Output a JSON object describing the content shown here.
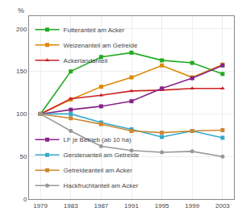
{
  "chart_data": {
    "type": "line",
    "x": [
      1979,
      1983,
      1987,
      1991,
      1995,
      1999,
      2003
    ],
    "series": [
      {
        "name": "Futteranteil am Acker",
        "color": "#22aa22",
        "marker": "square",
        "values": [
          100,
          150,
          167,
          172,
          163,
          160,
          147
        ]
      },
      {
        "name": "Weizenanteil am Getreide",
        "color": "#dd8800",
        "marker": "square",
        "values": [
          100,
          117,
          132,
          143,
          157,
          143,
          158
        ]
      },
      {
        "name": "Ackerlandanteil",
        "color": "#cc2222",
        "marker": "triangle",
        "values": [
          100,
          118,
          122,
          127,
          128,
          130,
          130
        ]
      },
      {
        "name": "LF je Betrieb (ab 10 ha)",
        "color": "#882288",
        "marker": "square",
        "legend": "lower left",
        "values": [
          100,
          105,
          109,
          115,
          130,
          142,
          157
        ]
      },
      {
        "name": "Gerstenanteil am Getreide",
        "color": "#33aacc",
        "marker": "square",
        "legend": "lower left",
        "values": [
          100,
          100,
          90,
          82,
          73,
          80,
          72
        ]
      },
      {
        "name": "Getreideanteil am Acker",
        "color": "#cc8833",
        "marker": "square",
        "legend": "lower left",
        "values": [
          100,
          95,
          88,
          80,
          78,
          80,
          81
        ]
      },
      {
        "name": "Hackfruchtanteil am Acker",
        "color": "#999999",
        "marker": "circle",
        "legend": "lower left",
        "values": [
          100,
          80,
          62,
          57,
          55,
          56,
          50
        ]
      }
    ],
    "y_label": "%",
    "xlim": [
      1977.5,
      2004.5
    ],
    "xticks": [
      1979,
      1983,
      1987,
      1991,
      1995,
      1999,
      2003
    ],
    "ylim": [
      0,
      215
    ],
    "yticks": [
      0,
      50,
      100,
      150,
      200
    ],
    "grid": true,
    "legend": "upper left"
  }
}
